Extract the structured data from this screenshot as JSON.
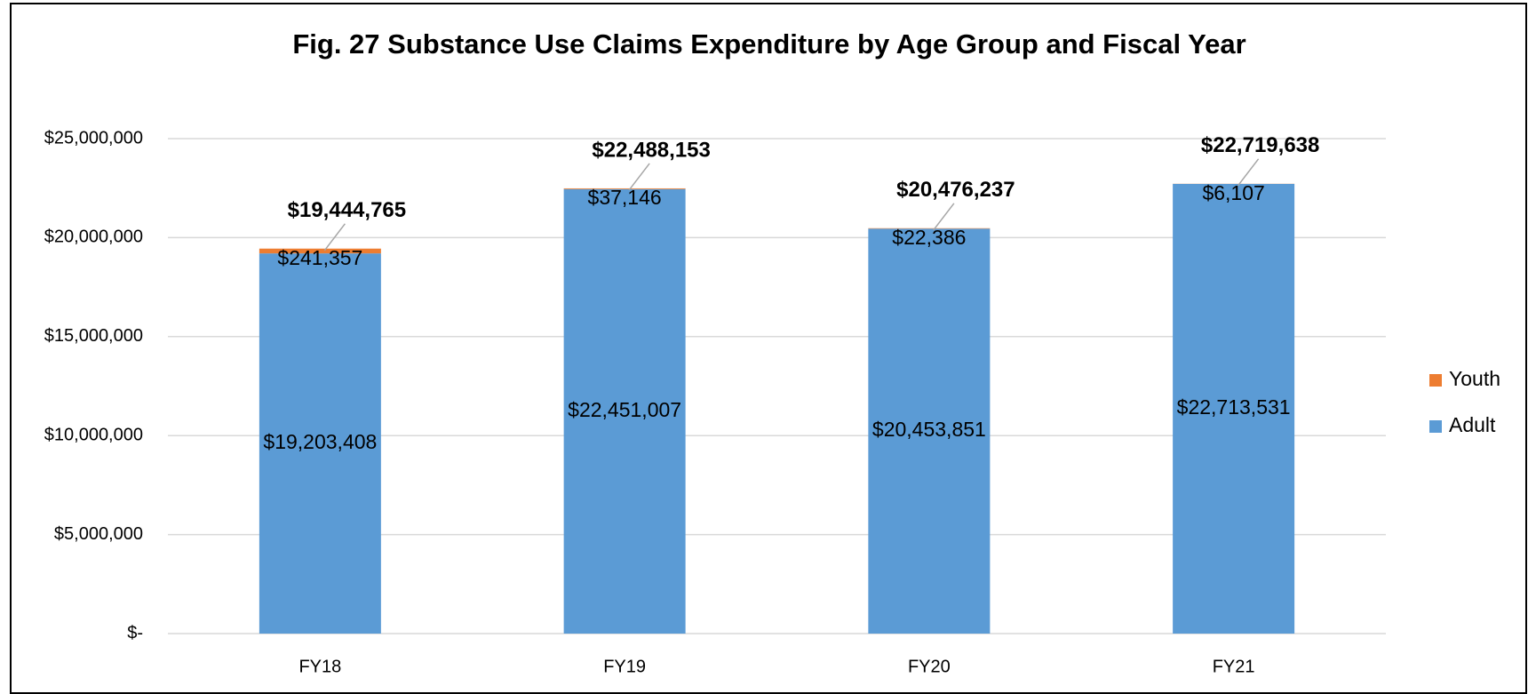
{
  "chart_data": {
    "type": "stacked_bar",
    "title": "Fig. 27 Substance Use Claims Expenditure by Age Group and Fiscal Year",
    "categories": [
      "FY18",
      "FY19",
      "FY20",
      "FY21"
    ],
    "series": [
      {
        "name": "Adult",
        "color": "#5b9bd5",
        "values": [
          19203408,
          22451007,
          20453851,
          22713531
        ],
        "value_labels": [
          "$19,203,408",
          "$22,451,007",
          "$20,453,851",
          "$22,713,531"
        ]
      },
      {
        "name": "Youth",
        "color": "#ed7d31",
        "values": [
          241357,
          37146,
          22386,
          6107
        ],
        "value_labels": [
          "$241,357",
          "$37,146",
          "$22,386",
          "$6,107"
        ]
      }
    ],
    "totals": {
      "values": [
        19444765,
        22488153,
        20476237,
        22719638
      ],
      "value_labels": [
        "$19,444,765",
        "$22,488,153",
        "$20,476,237",
        "$22,719,638"
      ]
    },
    "ylim": [
      0,
      25000000
    ],
    "yticks": [
      {
        "value": 0,
        "label": "$-"
      },
      {
        "value": 5000000,
        "label": "$5,000,000"
      },
      {
        "value": 10000000,
        "label": "$10,000,000"
      },
      {
        "value": 15000000,
        "label": "$15,000,000"
      },
      {
        "value": 20000000,
        "label": "$20,000,000"
      },
      {
        "value": 25000000,
        "label": "$25,000,000"
      }
    ],
    "grid": true,
    "legend": "right"
  }
}
